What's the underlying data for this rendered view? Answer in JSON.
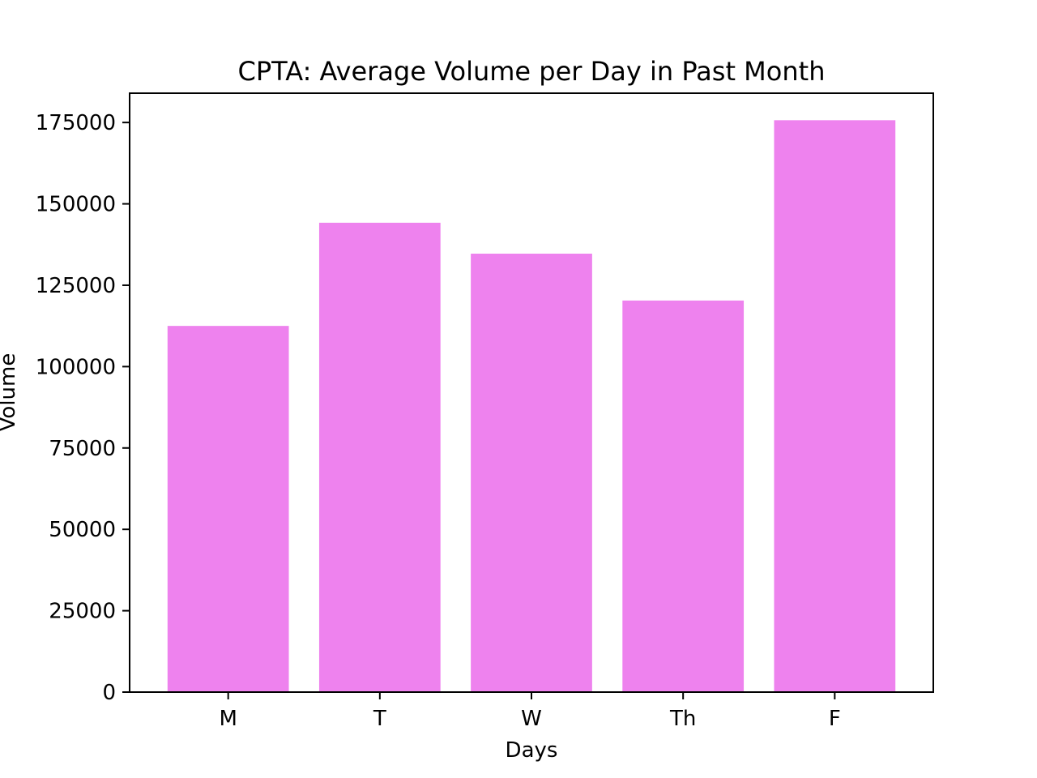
{
  "chart_data": {
    "type": "bar",
    "title": "CPTA: Average Volume per Day in Past Month",
    "xlabel": "Days",
    "ylabel": "Volume",
    "categories": [
      "M",
      "T",
      "W",
      "Th",
      "F"
    ],
    "values": [
      112500,
      144200,
      134700,
      120300,
      175700
    ],
    "ylim": [
      0,
      184000
    ],
    "yticks": [
      0,
      25000,
      50000,
      75000,
      100000,
      125000,
      150000,
      175000
    ],
    "ytick_labels": [
      "0",
      "25000",
      "50000",
      "75000",
      "100000",
      "125000",
      "150000",
      "175000"
    ],
    "bar_color": "#ee82ee",
    "grid": false,
    "legend": "none"
  }
}
